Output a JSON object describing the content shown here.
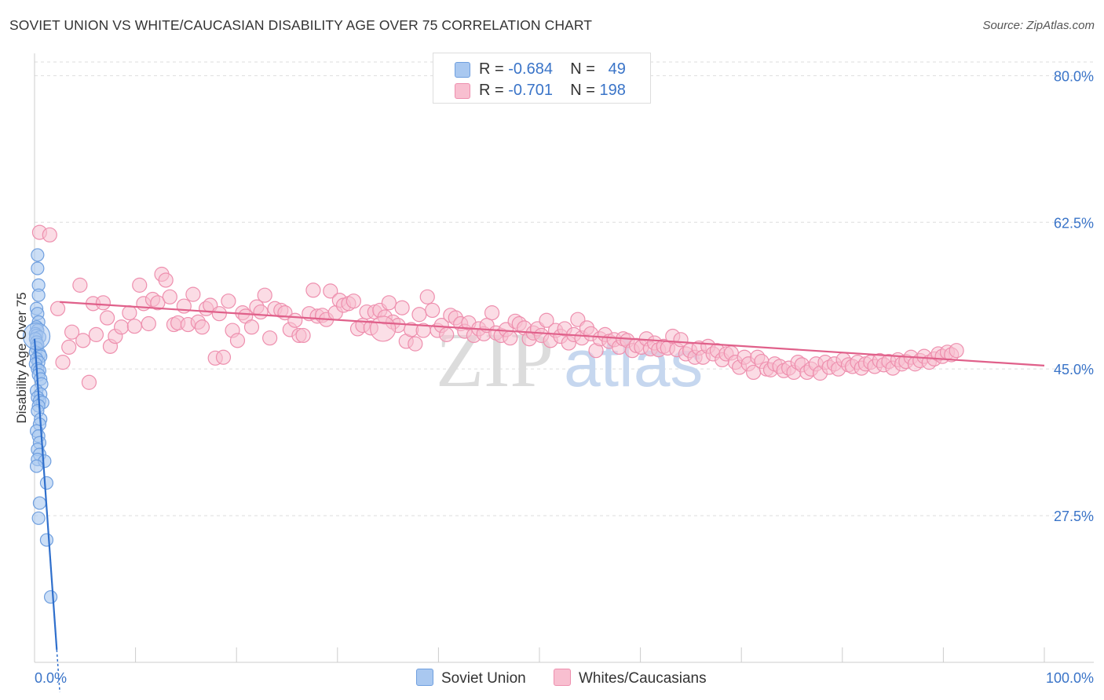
{
  "title": "SOVIET UNION VS WHITE/CAUCASIAN DISABILITY AGE OVER 75 CORRELATION CHART",
  "source": "Source: ZipAtlas.com",
  "watermark": {
    "part1": "ZIP",
    "part2": "atlas"
  },
  "legend": {
    "series1": {
      "r_label": "R = ",
      "r_value": "-0.684",
      "n_label": "N = ",
      "n_value": "49"
    },
    "series2": {
      "r_label": "R = ",
      "r_value": "-0.701",
      "n_label": "N = ",
      "n_value": "198"
    }
  },
  "colors": {
    "soviet_fill": "#a9c8f0",
    "soviet_stroke": "#6f9fdf",
    "soviet_line": "#2f6fcc",
    "white_fill": "#f8bfd0",
    "white_stroke": "#ee8fae",
    "white_line": "#e0608a",
    "axis_label": "#3a74c8",
    "grid": "#dddddd"
  },
  "chart_data": {
    "type": "scatter",
    "title": "SOVIET UNION VS WHITE/CAUCASIAN DISABILITY AGE OVER 75 CORRELATION CHART",
    "xlabel": "",
    "ylabel": "Disability Age Over 75",
    "xlim": [
      0,
      100
    ],
    "ylim": [
      10,
      82
    ],
    "x_tick_labels": [
      {
        "value": 0,
        "label": "0.0%"
      },
      {
        "value": 100,
        "label": "100.0%"
      }
    ],
    "y_tick_labels": [
      {
        "value": 80,
        "label": "80.0%"
      },
      {
        "value": 62.5,
        "label": "62.5%"
      },
      {
        "value": 45,
        "label": "45.0%"
      },
      {
        "value": 27.5,
        "label": "27.5%"
      }
    ],
    "grid": true,
    "legend_position": "top-center",
    "series": [
      {
        "name": "Soviet Union",
        "R": -0.684,
        "N": 49,
        "trend": [
          [
            0.0,
            48.6
          ],
          [
            2.2,
            11.5
          ]
        ],
        "points": [
          [
            0.3,
            58.6
          ],
          [
            0.3,
            57.0
          ],
          [
            0.4,
            55.0
          ],
          [
            0.4,
            53.8
          ],
          [
            0.2,
            52.2
          ],
          [
            0.3,
            51.6
          ],
          [
            0.4,
            50.6
          ],
          [
            0.2,
            50.0
          ],
          [
            0.3,
            49.6
          ],
          [
            0.1,
            49.2
          ],
          [
            0.2,
            49.0
          ],
          [
            0.5,
            48.8
          ],
          [
            0.1,
            48.6
          ],
          [
            0.2,
            48.2
          ],
          [
            0.3,
            47.9
          ],
          [
            0.2,
            47.5
          ],
          [
            0.1,
            47.0
          ],
          [
            0.5,
            46.8
          ],
          [
            0.6,
            46.5
          ],
          [
            0.2,
            46.2
          ],
          [
            0.4,
            45.8
          ],
          [
            0.1,
            45.6
          ],
          [
            0.3,
            45.0
          ],
          [
            0.5,
            44.8
          ],
          [
            0.4,
            44.3
          ],
          [
            0.6,
            43.8
          ],
          [
            0.7,
            43.2
          ],
          [
            0.2,
            42.4
          ],
          [
            0.6,
            42.0
          ],
          [
            0.3,
            41.6
          ],
          [
            0.5,
            41.2
          ],
          [
            0.8,
            41.0
          ],
          [
            0.4,
            40.6
          ],
          [
            0.3,
            40.0
          ],
          [
            0.6,
            39.0
          ],
          [
            0.5,
            38.4
          ],
          [
            0.2,
            37.6
          ],
          [
            0.4,
            37.0
          ],
          [
            0.5,
            36.2
          ],
          [
            0.3,
            35.4
          ],
          [
            0.5,
            34.8
          ],
          [
            0.3,
            34.2
          ],
          [
            1.0,
            34.0
          ],
          [
            0.2,
            33.4
          ],
          [
            1.2,
            31.4
          ],
          [
            0.5,
            29.0
          ],
          [
            0.4,
            27.2
          ],
          [
            1.2,
            24.6
          ],
          [
            1.6,
            17.8
          ]
        ],
        "big_points": [
          [
            0.2,
            48.9
          ]
        ]
      },
      {
        "name": "Whites/Caucasians",
        "R": -0.701,
        "N": 198,
        "trend": [
          [
            2.5,
            53.0
          ],
          [
            100.0,
            45.4
          ]
        ],
        "points": [
          [
            0.5,
            61.3
          ],
          [
            1.5,
            61.0
          ],
          [
            2.3,
            52.2
          ],
          [
            2.8,
            45.8
          ],
          [
            3.4,
            47.6
          ],
          [
            3.7,
            49.4
          ],
          [
            4.5,
            55.0
          ],
          [
            4.8,
            48.4
          ],
          [
            5.4,
            43.4
          ],
          [
            5.8,
            52.8
          ],
          [
            6.1,
            49.1
          ],
          [
            6.8,
            52.9
          ],
          [
            7.2,
            51.1
          ],
          [
            7.5,
            47.7
          ],
          [
            8.0,
            48.9
          ],
          [
            8.6,
            50.0
          ],
          [
            9.4,
            51.7
          ],
          [
            9.9,
            50.1
          ],
          [
            10.4,
            55.0
          ],
          [
            10.8,
            52.8
          ],
          [
            11.3,
            50.4
          ],
          [
            11.7,
            53.3
          ],
          [
            12.2,
            52.9
          ],
          [
            12.6,
            56.3
          ],
          [
            13.0,
            55.6
          ],
          [
            13.4,
            53.6
          ],
          [
            13.8,
            50.3
          ],
          [
            14.2,
            50.5
          ],
          [
            14.8,
            52.5
          ],
          [
            15.2,
            50.3
          ],
          [
            15.7,
            53.9
          ],
          [
            16.2,
            50.6
          ],
          [
            16.6,
            50.0
          ],
          [
            17.0,
            52.2
          ],
          [
            17.4,
            52.6
          ],
          [
            17.9,
            46.3
          ],
          [
            18.3,
            51.6
          ],
          [
            18.7,
            46.4
          ],
          [
            19.2,
            53.1
          ],
          [
            19.6,
            49.6
          ],
          [
            20.1,
            48.4
          ],
          [
            20.6,
            51.7
          ],
          [
            20.9,
            51.3
          ],
          [
            21.5,
            50.0
          ],
          [
            22.0,
            52.4
          ],
          [
            22.4,
            51.8
          ],
          [
            22.8,
            53.8
          ],
          [
            23.3,
            48.7
          ],
          [
            23.8,
            52.2
          ],
          [
            24.4,
            52.0
          ],
          [
            24.8,
            51.7
          ],
          [
            25.3,
            49.7
          ],
          [
            25.8,
            50.8
          ],
          [
            26.2,
            49.0
          ],
          [
            26.6,
            49.0
          ],
          [
            27.2,
            51.6
          ],
          [
            27.6,
            54.4
          ],
          [
            28.0,
            51.3
          ],
          [
            28.5,
            51.4
          ],
          [
            28.9,
            50.9
          ],
          [
            29.3,
            54.3
          ],
          [
            29.8,
            51.7
          ],
          [
            30.2,
            53.2
          ],
          [
            30.6,
            52.6
          ],
          [
            31.1,
            52.8
          ],
          [
            31.6,
            53.1
          ],
          [
            32.0,
            49.8
          ],
          [
            32.5,
            50.2
          ],
          [
            32.9,
            51.8
          ],
          [
            33.3,
            49.9
          ],
          [
            33.7,
            51.8
          ],
          [
            34.2,
            52.0
          ],
          [
            34.7,
            51.2
          ],
          [
            35.1,
            52.9
          ],
          [
            35.5,
            50.6
          ],
          [
            36.0,
            50.2
          ],
          [
            36.4,
            52.3
          ],
          [
            36.8,
            48.3
          ],
          [
            37.3,
            49.7
          ],
          [
            37.7,
            48.0
          ],
          [
            38.1,
            51.5
          ],
          [
            38.5,
            49.6
          ],
          [
            38.9,
            53.6
          ],
          [
            39.4,
            52.0
          ],
          [
            39.9,
            49.6
          ],
          [
            40.3,
            50.2
          ],
          [
            40.8,
            49.1
          ],
          [
            41.2,
            51.4
          ],
          [
            41.7,
            51.1
          ],
          [
            42.2,
            50.4
          ],
          [
            42.6,
            49.5
          ],
          [
            43.0,
            50.5
          ],
          [
            43.5,
            49.0
          ],
          [
            44.0,
            49.8
          ],
          [
            44.5,
            49.2
          ],
          [
            44.8,
            50.2
          ],
          [
            45.3,
            51.7
          ],
          [
            45.7,
            49.3
          ],
          [
            46.2,
            49.0
          ],
          [
            46.7,
            49.7
          ],
          [
            47.1,
            48.7
          ],
          [
            47.6,
            50.7
          ],
          [
            48.0,
            50.4
          ],
          [
            48.5,
            49.9
          ],
          [
            49.0,
            48.6
          ],
          [
            49.4,
            49.3
          ],
          [
            49.8,
            49.8
          ],
          [
            50.2,
            49.0
          ],
          [
            50.7,
            50.8
          ],
          [
            51.1,
            48.4
          ],
          [
            51.6,
            49.6
          ],
          [
            52.1,
            48.9
          ],
          [
            52.5,
            49.8
          ],
          [
            52.9,
            48.1
          ],
          [
            53.4,
            49.1
          ],
          [
            53.8,
            50.9
          ],
          [
            54.2,
            48.7
          ],
          [
            54.7,
            49.9
          ],
          [
            55.1,
            49.2
          ],
          [
            55.6,
            47.2
          ],
          [
            56.0,
            48.6
          ],
          [
            56.5,
            49.1
          ],
          [
            56.9,
            48.3
          ],
          [
            57.4,
            48.5
          ],
          [
            57.9,
            47.6
          ],
          [
            58.3,
            48.6
          ],
          [
            58.7,
            48.4
          ],
          [
            59.2,
            47.2
          ],
          [
            59.6,
            47.8
          ],
          [
            60.1,
            47.6
          ],
          [
            60.6,
            48.6
          ],
          [
            61.0,
            47.4
          ],
          [
            61.4,
            48.1
          ],
          [
            61.8,
            47.3
          ],
          [
            62.3,
            47.7
          ],
          [
            62.7,
            47.5
          ],
          [
            63.2,
            48.9
          ],
          [
            63.6,
            47.3
          ],
          [
            64.0,
            48.5
          ],
          [
            64.5,
            46.8
          ],
          [
            64.9,
            47.2
          ],
          [
            65.4,
            46.4
          ],
          [
            65.8,
            47.5
          ],
          [
            66.2,
            46.4
          ],
          [
            66.7,
            47.7
          ],
          [
            67.2,
            46.8
          ],
          [
            67.6,
            47.2
          ],
          [
            68.1,
            46.1
          ],
          [
            68.5,
            46.8
          ],
          [
            69.0,
            46.9
          ],
          [
            69.4,
            45.8
          ],
          [
            69.8,
            45.2
          ],
          [
            70.3,
            46.4
          ],
          [
            70.7,
            45.6
          ],
          [
            71.2,
            44.6
          ],
          [
            71.6,
            46.4
          ],
          [
            72.0,
            45.9
          ],
          [
            72.5,
            45.0
          ],
          [
            72.9,
            44.9
          ],
          [
            73.3,
            45.6
          ],
          [
            73.8,
            45.3
          ],
          [
            74.2,
            44.8
          ],
          [
            74.7,
            45.1
          ],
          [
            75.2,
            44.6
          ],
          [
            75.6,
            45.8
          ],
          [
            76.0,
            45.5
          ],
          [
            76.5,
            44.6
          ],
          [
            76.9,
            45.0
          ],
          [
            77.4,
            45.6
          ],
          [
            77.8,
            44.5
          ],
          [
            78.3,
            45.8
          ],
          [
            78.7,
            45.2
          ],
          [
            79.2,
            45.6
          ],
          [
            79.6,
            45.0
          ],
          [
            80.1,
            46.1
          ],
          [
            80.6,
            45.5
          ],
          [
            81.0,
            45.3
          ],
          [
            81.5,
            45.8
          ],
          [
            81.9,
            45.1
          ],
          [
            82.3,
            45.6
          ],
          [
            82.8,
            45.8
          ],
          [
            83.2,
            45.3
          ],
          [
            83.7,
            46.0
          ],
          [
            84.1,
            45.5
          ],
          [
            84.6,
            45.9
          ],
          [
            85.0,
            45.1
          ],
          [
            85.5,
            46.1
          ],
          [
            85.9,
            45.6
          ],
          [
            86.3,
            45.9
          ],
          [
            86.8,
            46.4
          ],
          [
            87.2,
            45.6
          ],
          [
            87.7,
            46.0
          ],
          [
            88.1,
            46.5
          ],
          [
            88.6,
            45.8
          ],
          [
            89.1,
            46.2
          ],
          [
            89.5,
            46.8
          ],
          [
            89.9,
            46.5
          ],
          [
            90.4,
            47.0
          ],
          [
            90.8,
            46.7
          ],
          [
            91.3,
            47.2
          ]
        ],
        "big_points": [
          [
            34.5,
            49.8
          ]
        ]
      }
    ]
  },
  "bottom_legend": [
    "Soviet Union",
    "Whites/Caucasians"
  ]
}
